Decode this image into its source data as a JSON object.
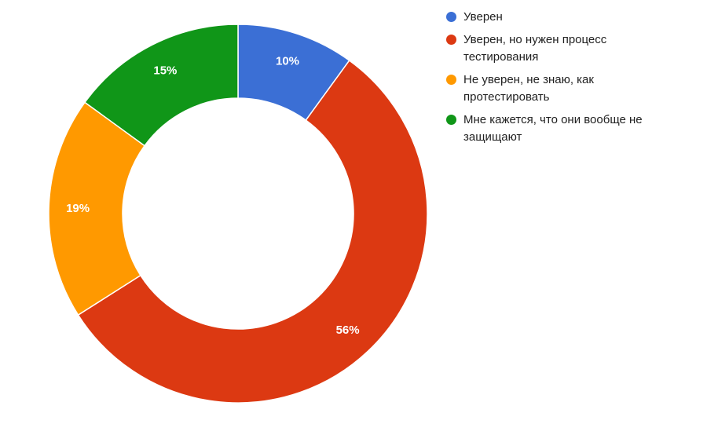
{
  "chart_data": {
    "type": "pie",
    "donut": true,
    "title": "",
    "background": "#FFFFFF",
    "start_angle_deg": 0,
    "direction": "clockwise",
    "hole_ratio": 0.61,
    "legend_position": "right",
    "legend_text_color": "#212121",
    "slice_label_color": "#FFFFFF",
    "categories": [
      "Уверен",
      "Уверен, но нужен процесс тестирования",
      "Не уверен, не знаю, как протестировать",
      "Мне кажется, что они вообще не защищают"
    ],
    "values": [
      10,
      56,
      19,
      15
    ],
    "unit": "%",
    "slices": [
      {
        "label": "Уверен",
        "value": 10,
        "data_label": "10%",
        "color": "#3B6FD5"
      },
      {
        "label": "Уверен, но нужен процесс тестирования",
        "value": 56,
        "data_label": "56%",
        "color": "#DC3912"
      },
      {
        "label": "Не уверен, не знаю, как протестировать",
        "value": 19,
        "data_label": "19%",
        "color": "#FF9900"
      },
      {
        "label": "Мне кажется, что они вообще не защищают",
        "value": 15,
        "data_label": "15%",
        "color": "#109618"
      }
    ]
  }
}
